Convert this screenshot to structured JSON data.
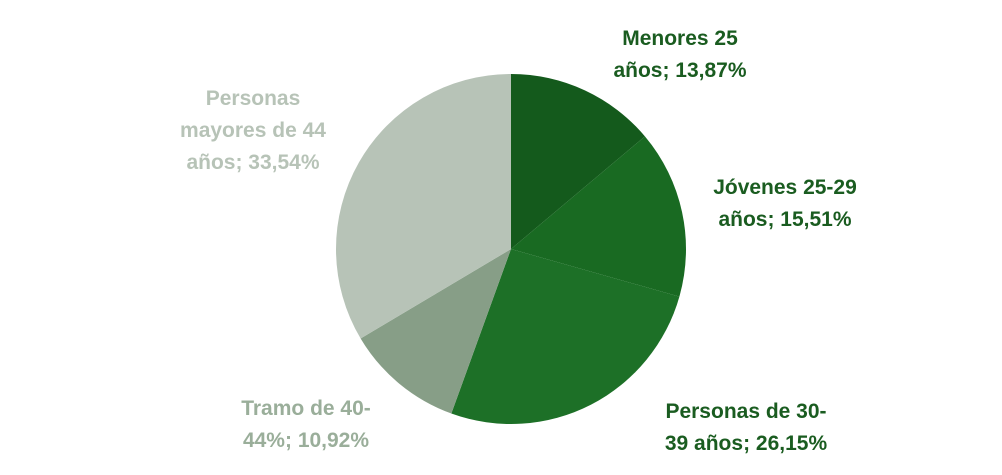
{
  "chart_data": {
    "type": "pie",
    "categories": [
      "Menores 25 años",
      "Jóvenes 25-29 años",
      "Personas de 30-39 años",
      "Tramo de 40-44%",
      "Personas mayores de 44 años"
    ],
    "values": [
      13.87,
      15.51,
      26.15,
      10.92,
      33.54
    ],
    "value_labels": [
      "13,87%",
      "15,51%",
      "26,15%",
      "10,92%",
      "33,54%"
    ],
    "label_separator": "; ",
    "colors": [
      "#145a1c",
      "#196a22",
      "#1d7027",
      "#879e87",
      "#b7c3b7"
    ],
    "label_colors": [
      "#1a5c20",
      "#1a5c20",
      "#1a5c20",
      "#9aae9a",
      "#b7c3b7"
    ]
  }
}
